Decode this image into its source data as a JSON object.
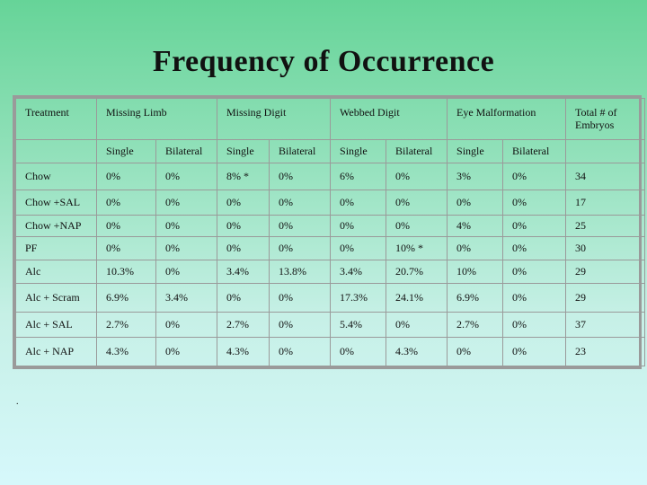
{
  "title": "Frequency of Occurrence",
  "table": {
    "group_headers": [
      "Treatment",
      "Missing Limb",
      "Missing Digit",
      "Webbed Digit",
      "Eye Malformation",
      "Total # of Embryos"
    ],
    "sub_headers": [
      "Single",
      "Bilateral",
      "Single",
      "Bilateral",
      "Single",
      "Bilateral",
      "Single",
      "Bilateral"
    ],
    "rows": [
      {
        "treatment": "Chow",
        "cells": [
          "0%",
          "0%",
          "8% *",
          "0%",
          "6%",
          "0%",
          "3%",
          "0%",
          "34"
        ]
      },
      {
        "treatment": "Chow +SAL",
        "cells": [
          "0%",
          "0%",
          "0%",
          "0%",
          "0%",
          "0%",
          "0%",
          "0%",
          "17"
        ]
      },
      {
        "treatment": "Chow +NAP",
        "cells": [
          "0%",
          "0%",
          "0%",
          "0%",
          "0%",
          "0%",
          "4%",
          "0%",
          "25"
        ]
      },
      {
        "treatment": "PF",
        "cells": [
          "0%",
          "0%",
          "0%",
          "0%",
          "0%",
          "10% *",
          "0%",
          "0%",
          "30"
        ]
      },
      {
        "treatment": "Alc",
        "cells": [
          "10.3%",
          "0%",
          "3.4%",
          "13.8%",
          "3.4%",
          "20.7%",
          "10%",
          "0%",
          "29"
        ]
      },
      {
        "treatment": "Alc + Scram",
        "cells": [
          "6.9%",
          "3.4%",
          "0%",
          "0%",
          "17.3%",
          "24.1%",
          "6.9%",
          "0%",
          "29"
        ]
      },
      {
        "treatment": "Alc + SAL",
        "cells": [
          "2.7%",
          "0%",
          "2.7%",
          "0%",
          "5.4%",
          "0%",
          "2.7%",
          "0%",
          "37"
        ]
      },
      {
        "treatment": "Alc + NAP",
        "cells": [
          "4.3%",
          "0%",
          "4.3%",
          "0%",
          "0%",
          "4.3%",
          "0%",
          "0%",
          "23"
        ]
      }
    ]
  },
  "footnote": "."
}
